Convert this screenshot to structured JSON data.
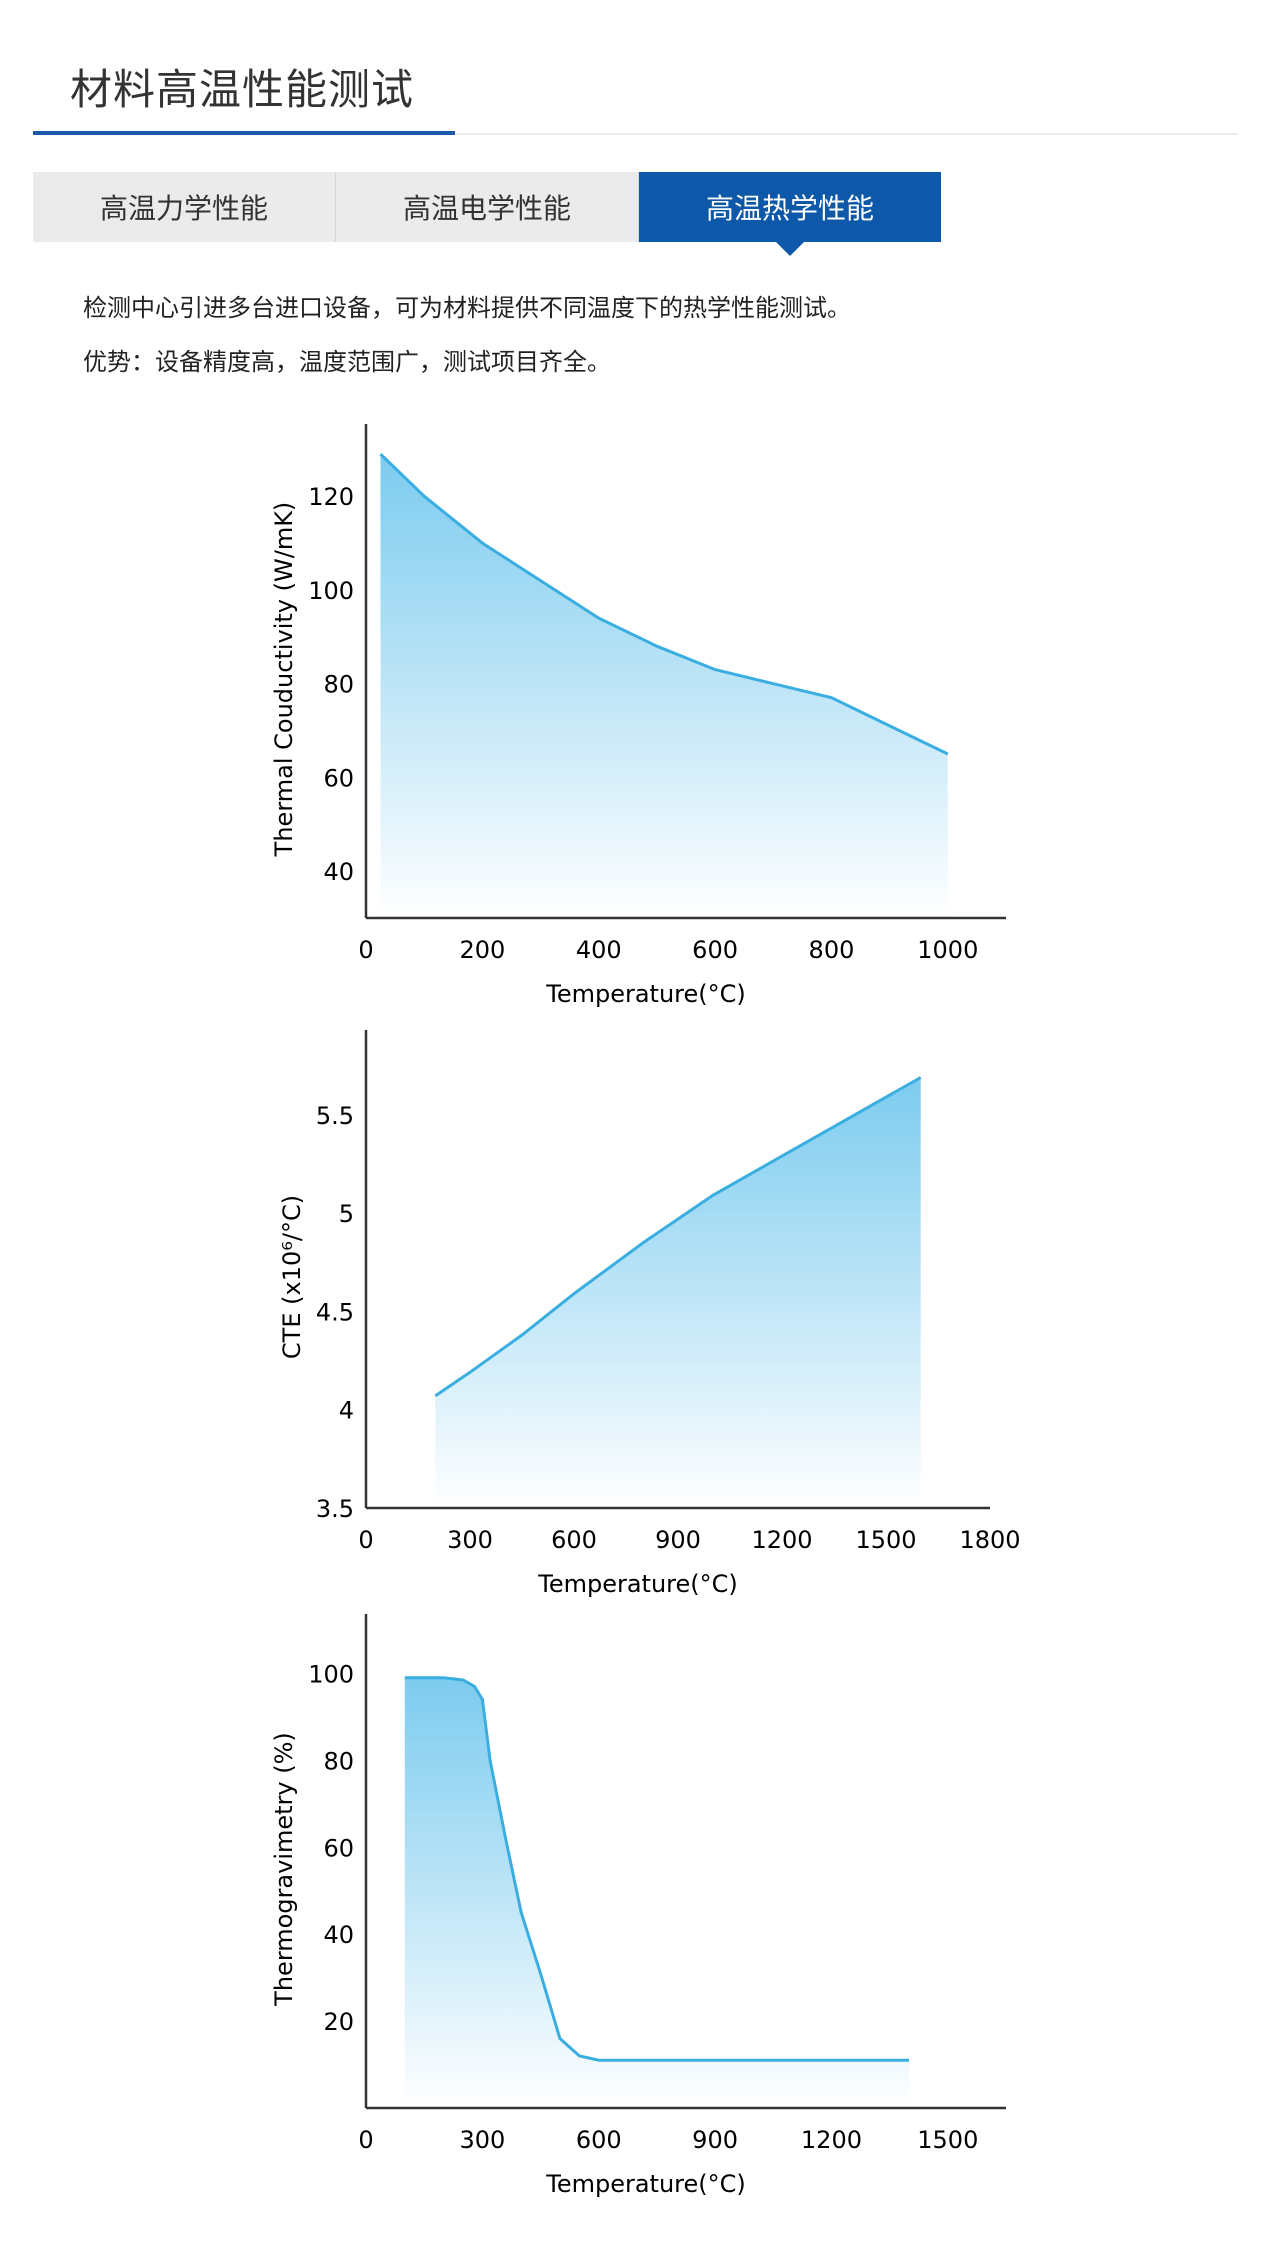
{
  "header": {
    "title": "材料高温性能测试"
  },
  "tabs": [
    {
      "label": "高温力学性能",
      "active": false
    },
    {
      "label": "高温电学性能",
      "active": false
    },
    {
      "label": "高温热学性能",
      "active": true
    }
  ],
  "description": {
    "line1": "检测中心引进多台进口设备，可为材料提供不同温度下的热学性能测试。",
    "line2": "优势：设备精度高，温度范围广，测试项目齐全。"
  },
  "colors": {
    "accent": "#0d58a8",
    "line": "#3aaee0",
    "fill_top": "#7ccbef",
    "fill_bottom": "#ffffff"
  },
  "chart_data": [
    {
      "type": "area",
      "xlabel": "Temperature(°C)",
      "ylabel": "Thermal Couductivity (W/mK)",
      "xlim": [
        0,
        1100
      ],
      "ylim": [
        30,
        132
      ],
      "xticks": [
        0,
        200,
        400,
        600,
        800,
        1000
      ],
      "yticks": [
        40,
        60,
        80,
        100,
        120
      ],
      "x": [
        25,
        100,
        200,
        300,
        400,
        500,
        600,
        700,
        800,
        900,
        1000
      ],
      "y": [
        129,
        120,
        110,
        102,
        94,
        88,
        83,
        80,
        77,
        71,
        65
      ]
    },
    {
      "type": "area",
      "xlabel": "Temperature(°C)",
      "ylabel": "CTE (x10⁶/°C)",
      "xlim": [
        0,
        1800
      ],
      "ylim": [
        3.5,
        5.85
      ],
      "xticks": [
        0,
        300,
        600,
        900,
        1200,
        1500,
        1800
      ],
      "yticks": [
        3.5,
        4.0,
        4.5,
        5.0,
        5.5
      ],
      "x": [
        200,
        300,
        450,
        600,
        800,
        1000,
        1200,
        1400,
        1600
      ],
      "y": [
        4.07,
        4.19,
        4.38,
        4.59,
        4.85,
        5.09,
        5.29,
        5.49,
        5.69
      ]
    },
    {
      "type": "area",
      "xlabel": "Temperature(°C)",
      "ylabel": "Thermogravimetry (%)",
      "xlim": [
        0,
        1650
      ],
      "ylim": [
        0,
        110
      ],
      "xticks": [
        0,
        300,
        600,
        900,
        1200,
        1500
      ],
      "yticks": [
        20,
        40,
        60,
        80,
        100
      ],
      "x": [
        100,
        200,
        250,
        280,
        300,
        320,
        360,
        400,
        450,
        500,
        550,
        600,
        700,
        900,
        1100,
        1300,
        1400
      ],
      "y": [
        99,
        99,
        98.5,
        97,
        94,
        80,
        62,
        45,
        31,
        16,
        12,
        11,
        11,
        11,
        11,
        11,
        11
      ]
    }
  ]
}
